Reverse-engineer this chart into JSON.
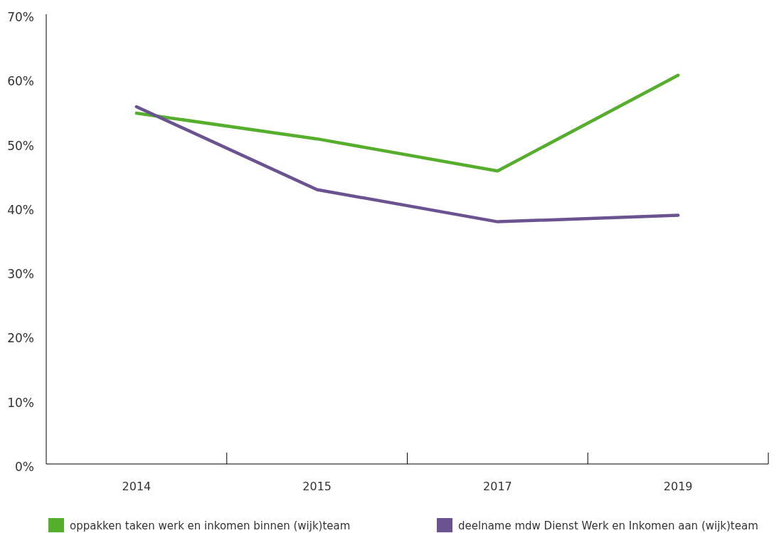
{
  "chart_data": {
    "type": "line",
    "categories": [
      "2014",
      "2015",
      "2017",
      "2019"
    ],
    "series": [
      {
        "name": "oppakken taken werk en inkomen binnen (wijk)team",
        "color": "#56ae2d",
        "values": [
          54.6,
          50.6,
          45.6,
          60.5
        ]
      },
      {
        "name": "deelname mdw Dienst Werk en Inkomen aan (wijk)team",
        "color": "#6a5390",
        "values": [
          55.6,
          42.7,
          37.7,
          38.7
        ]
      }
    ],
    "ylim": [
      0,
      70
    ],
    "yticks": [
      {
        "value": 0,
        "label": "0%"
      },
      {
        "value": 10,
        "label": "10%"
      },
      {
        "value": 20,
        "label": "20%"
      },
      {
        "value": 30,
        "label": "30%"
      },
      {
        "value": 40,
        "label": "40%"
      },
      {
        "value": 50,
        "label": "50%"
      },
      {
        "value": 60,
        "label": "60%"
      },
      {
        "value": 70,
        "label": "70%"
      }
    ],
    "grid": false,
    "legend": "bottom",
    "marker": "none",
    "line_style": "solid"
  }
}
